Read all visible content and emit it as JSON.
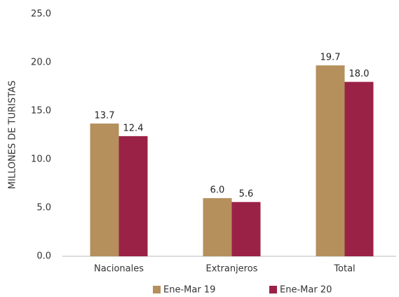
{
  "chart_data": {
    "type": "bar",
    "y_label": "MILLONES DE TURISTAS",
    "categories": [
      "Nacionales",
      "Extranjeros",
      "Total"
    ],
    "series": [
      {
        "name": "Ene-Mar 19",
        "color": "#b5905c",
        "values": [
          13.7,
          6.0,
          19.7
        ],
        "value_labels": [
          "13.7",
          "6.0",
          "19.7"
        ]
      },
      {
        "name": "Ene-Mar 20",
        "color": "#9b2247",
        "values": [
          12.4,
          5.6,
          18.0
        ],
        "value_labels": [
          "12.4",
          "5.6",
          "18.0"
        ]
      }
    ],
    "ylim": [
      0,
      25
    ],
    "yticks": [
      {
        "value": 0,
        "label": "0.0"
      },
      {
        "value": 5,
        "label": "5.0"
      },
      {
        "value": 10,
        "label": "10.0"
      },
      {
        "value": 15,
        "label": "15.0"
      },
      {
        "value": 20,
        "label": "20.0"
      },
      {
        "value": 25,
        "label": "25.0"
      }
    ],
    "grid": false,
    "legend": "bottom"
  }
}
